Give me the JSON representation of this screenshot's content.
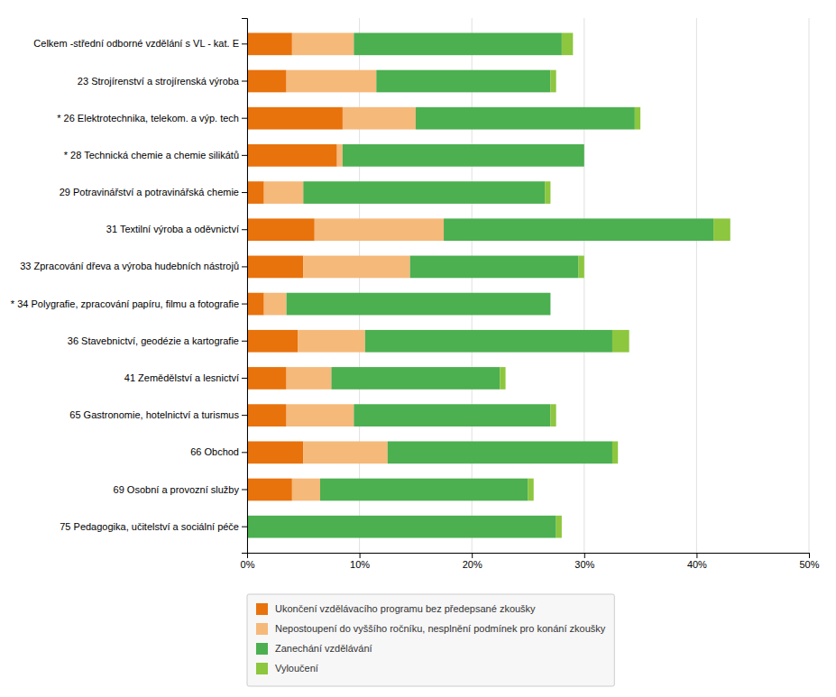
{
  "chart_data": {
    "type": "bar",
    "orientation": "horizontal",
    "stacked": true,
    "categories": [
      "Celkem -střední odborné vzdělání s VL - kat. E",
      "23 Strojírenství a strojírenská výroba",
      "* 26 Elektrotechnika, telekom. a výp. tech",
      "* 28 Technická chemie a chemie silikátů",
      "29 Potravinářství a potravinářská chemie",
      "31 Textilní výroba a oděvnictví",
      "33 Zpracování dřeva a výroba hudebních nástrojů",
      "* 34 Polygrafie, zpracování papíru, filmu a fotografie",
      "36 Stavebnictví, geodézie a kartografie",
      "41 Zemědělství a lesnictví",
      "65 Gastronomie, hotelnictví a turismus",
      "66 Obchod",
      "69 Osobní a provozní služby",
      "75 Pedagogika, učitelství a sociální péče"
    ],
    "series": [
      {
        "name": "Ukončení vzdělávacího programu bez předepsané zkoušky",
        "color": "#e8720c",
        "values": [
          4.0,
          3.5,
          8.5,
          8.0,
          1.5,
          6.0,
          5.0,
          1.5,
          4.5,
          3.5,
          3.5,
          5.0,
          4.0,
          0.0
        ]
      },
      {
        "name": "Nepostoupení do vyššího ročníku, nesplnění podmínek pro konání zkoušky",
        "color": "#f5b97a",
        "values": [
          5.5,
          8.0,
          6.5,
          0.5,
          3.5,
          11.5,
          9.5,
          2.0,
          6.0,
          4.0,
          6.0,
          7.5,
          2.5,
          0.0
        ]
      },
      {
        "name": "Zanechání vzdělávání",
        "color": "#4caf50",
        "values": [
          18.5,
          15.5,
          19.5,
          21.5,
          21.5,
          24.0,
          15.0,
          23.5,
          22.0,
          15.0,
          17.5,
          20.0,
          18.5,
          27.5
        ]
      },
      {
        "name": "Vyloučení",
        "color": "#8dc63f",
        "values": [
          1.0,
          0.5,
          0.5,
          0.0,
          0.5,
          1.5,
          0.5,
          0.0,
          1.5,
          0.5,
          0.5,
          0.5,
          0.5,
          0.5
        ]
      }
    ],
    "xlim": [
      0,
      50
    ],
    "xticks": [
      {
        "value": 0,
        "label": "0%"
      },
      {
        "value": 10,
        "label": "10%"
      },
      {
        "value": 20,
        "label": "20%"
      },
      {
        "value": 30,
        "label": "30%"
      },
      {
        "value": 40,
        "label": "40%"
      },
      {
        "value": 50,
        "label": "50%"
      }
    ],
    "grid": true,
    "legend": "bottom"
  }
}
